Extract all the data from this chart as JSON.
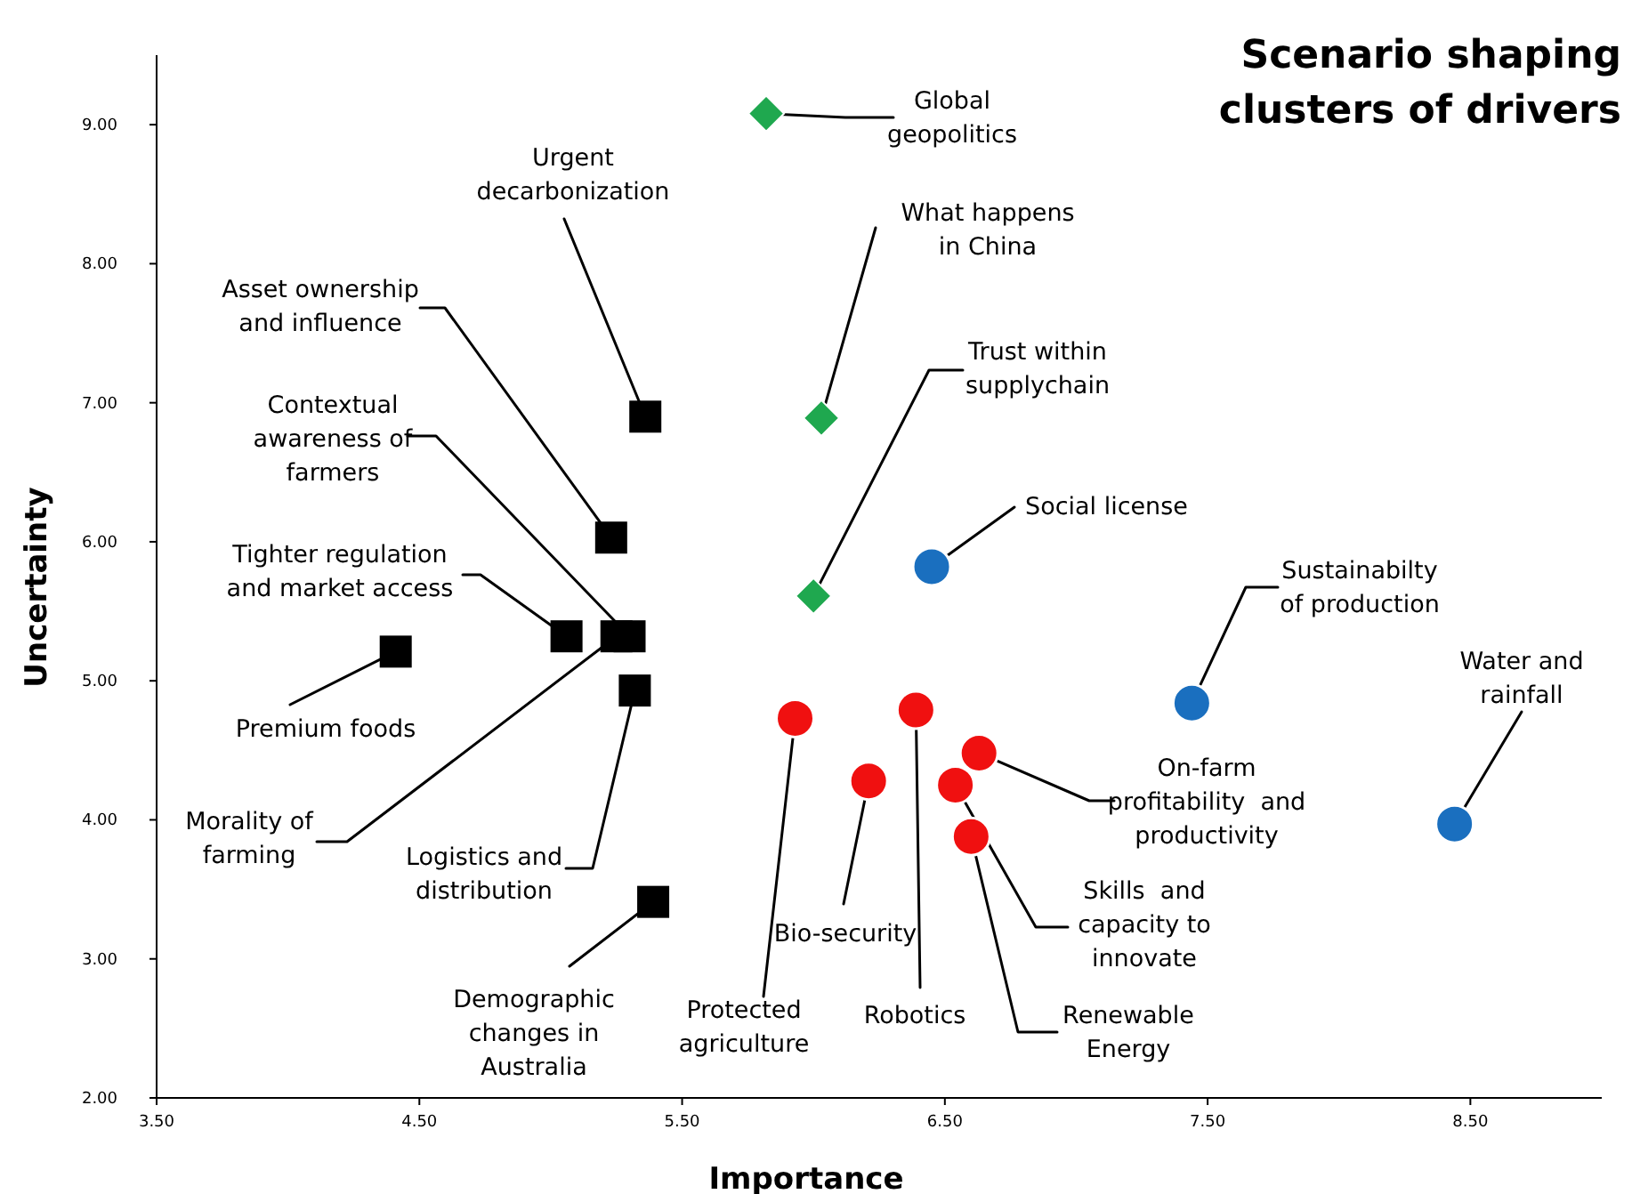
{
  "chart_data": {
    "type": "scatter",
    "title": "Scenario shaping\nclusters of drivers",
    "xlabel": "Importance",
    "ylabel": "Uncertainty",
    "xlim": [
      3.5,
      9.0
    ],
    "ylim": [
      2,
      9.5
    ],
    "xticks": [
      {
        "value": 3.5,
        "label": "3.50"
      },
      {
        "value": 4.5,
        "label": "4.50"
      },
      {
        "value": 5.5,
        "label": "5.50"
      },
      {
        "value": 6.5,
        "label": "6.50"
      },
      {
        "value": 7.5,
        "label": "7.50"
      },
      {
        "value": 8.5,
        "label": "8.50"
      }
    ],
    "yticks": [
      {
        "value": 2,
        "label": "2.00"
      },
      {
        "value": 3,
        "label": "3.00"
      },
      {
        "value": 4,
        "label": "4.00"
      },
      {
        "value": 5,
        "label": "5.00"
      },
      {
        "value": 6,
        "label": "6.00"
      },
      {
        "value": 7,
        "label": "7.00"
      },
      {
        "value": 8,
        "label": "8.00"
      },
      {
        "value": 9,
        "label": "9.00"
      }
    ],
    "grid": false,
    "series": [
      {
        "color": "#000000",
        "marker": "square",
        "x": [
          5.36,
          5.23,
          5.3,
          5.06,
          4.41,
          5.25,
          5.32,
          5.39
        ],
        "values": [
          6.9,
          6.03,
          5.32,
          5.32,
          5.21,
          5.32,
          4.93,
          3.41
        ]
      },
      {
        "color": "#1fa84f",
        "marker": "diamond",
        "x": [
          5.82,
          6.03,
          6.0
        ],
        "values": [
          9.08,
          6.89,
          5.61
        ]
      },
      {
        "color": "#1a6fbf",
        "marker": "circle",
        "x": [
          6.45,
          7.44,
          8.44
        ],
        "values": [
          5.82,
          4.84,
          3.97
        ]
      },
      {
        "color": "#f01010",
        "marker": "circle",
        "x": [
          5.93,
          6.21,
          6.39,
          6.63,
          6.54,
          6.6
        ],
        "values": [
          4.73,
          4.28,
          4.79,
          4.48,
          4.25,
          3.88
        ]
      }
    ],
    "annotations": [
      {
        "text": "Global\ngeopolitics",
        "x": 5.82,
        "y": 9.08
      },
      {
        "text": "Urgent\ndecarbonization",
        "x": 5.36,
        "y": 6.9
      },
      {
        "text": "Asset ownership\nand influence",
        "x": 5.23,
        "y": 6.03
      },
      {
        "text": "What happens\nin China",
        "x": 6.03,
        "y": 6.89
      },
      {
        "text": "Contextual\nawareness of\nfarmers",
        "x": 5.3,
        "y": 5.32
      },
      {
        "text": "Trust within\nsupplychain",
        "x": 6.0,
        "y": 5.61
      },
      {
        "text": "Social license",
        "x": 6.45,
        "y": 5.82
      },
      {
        "text": "Tighter regulation\nand market access",
        "x": 5.06,
        "y": 5.32
      },
      {
        "text": "Sustainabilty\nof production",
        "x": 7.44,
        "y": 4.84
      },
      {
        "text": "Water and\nrainfall",
        "x": 8.44,
        "y": 3.97
      },
      {
        "text": "Premium foods",
        "x": 4.41,
        "y": 5.21
      },
      {
        "text": "Morality of\nfarming",
        "x": 5.25,
        "y": 5.32
      },
      {
        "text": "On-farm\nprofitability  and\nproductivity",
        "x": 6.63,
        "y": 4.48
      },
      {
        "text": "Logistics and\ndistribution",
        "x": 5.32,
        "y": 4.93
      },
      {
        "text": "Skills  and\ncapacity to\ninnovate",
        "x": 6.54,
        "y": 4.25
      },
      {
        "text": "Bio-security",
        "x": 6.21,
        "y": 4.28
      },
      {
        "text": "Demographic\nchanges in\nAustralia",
        "x": 5.39,
        "y": 3.41
      },
      {
        "text": "Protected\nagriculture",
        "x": 5.93,
        "y": 4.73
      },
      {
        "text": "Robotics",
        "x": 6.39,
        "y": 4.79
      },
      {
        "text": "Renewable\nEnergy",
        "x": 6.6,
        "y": 3.88
      }
    ]
  }
}
